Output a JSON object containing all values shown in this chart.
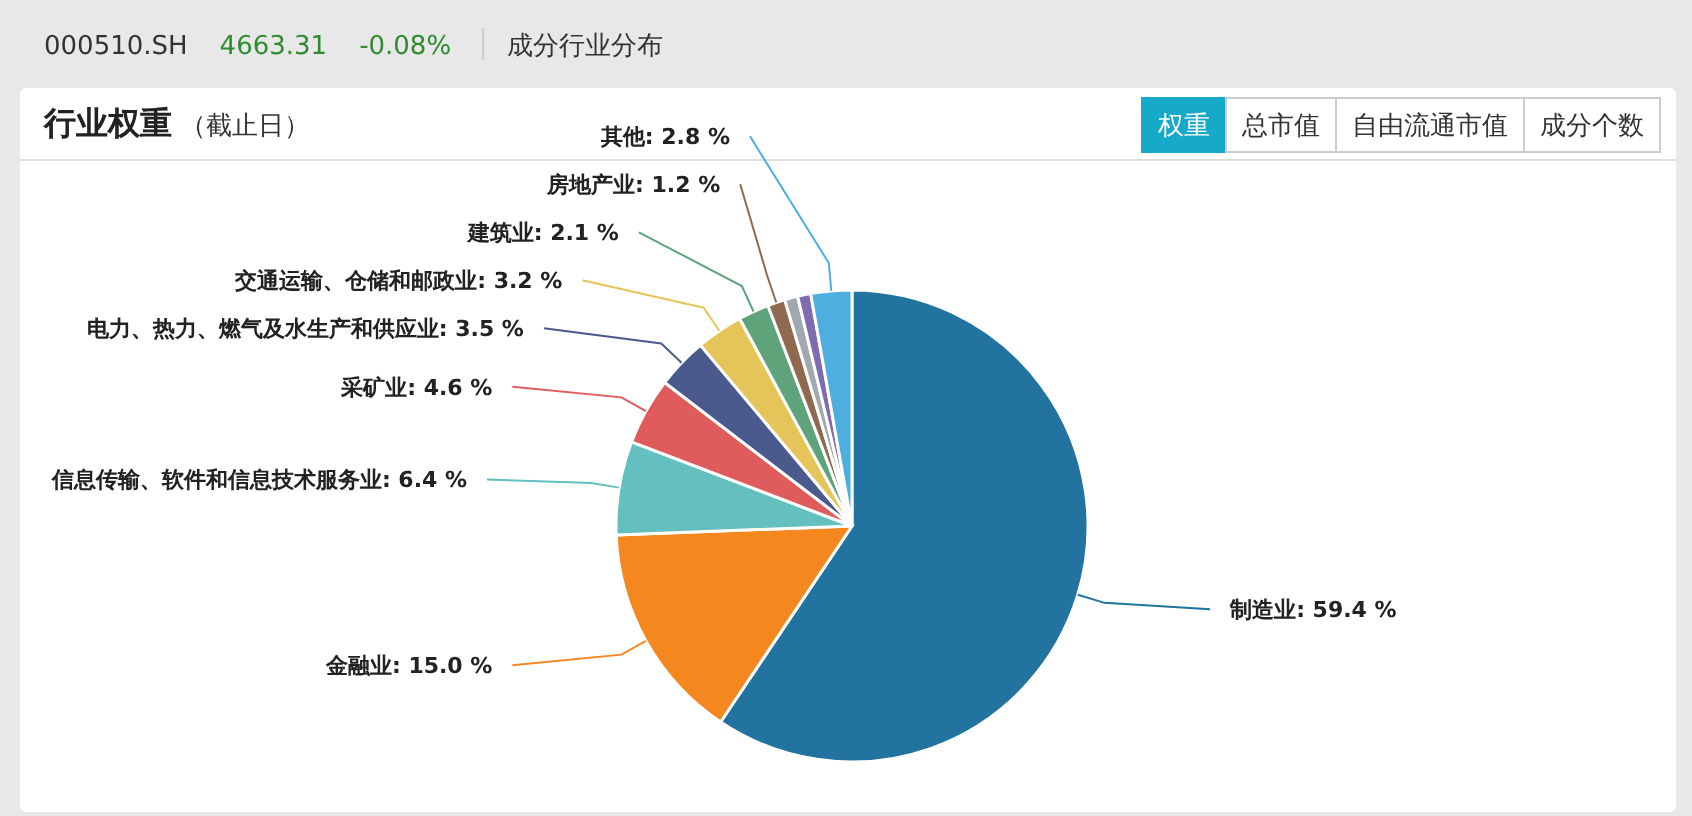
{
  "chart_data": {
    "type": "pie",
    "title": "行业权重",
    "subtitle": "（截止日）",
    "annotations": [
      "000510.SH",
      "4663.31",
      "-0.08%",
      "成分行业分布",
      "权重",
      "总市值",
      "自由流通市值",
      "成分个数"
    ],
    "categories": [
      "制造业",
      "金融业",
      "信息传输、软件和信息技术服务业",
      "采矿业",
      "电力、热力、燃气及水生产和供应业",
      "交通运输、仓储和邮政业",
      "建筑业",
      "房地产业",
      null,
      null,
      "其他"
    ],
    "values": [
      59.4,
      15.0,
      6.4,
      4.6,
      3.5,
      3.2,
      2.1,
      1.2,
      0.9,
      0.9,
      2.8
    ],
    "value_labels": [
      "59.4 %",
      "15.0 %",
      "6.4 %",
      "4.6 %",
      "3.5 %",
      "3.2 %",
      "2.1 %",
      "1.2 %",
      null,
      null,
      "2.8 %"
    ],
    "colors": [
      "#22739f",
      "#f5871f",
      "#64bfbf",
      "#e05c5c",
      "#4a5a8c",
      "#e5c55a",
      "#5fa37a",
      "#8f6a50",
      "#a0a8b0",
      "#7f6bb0",
      "#4eaee0"
    ]
  }
}
